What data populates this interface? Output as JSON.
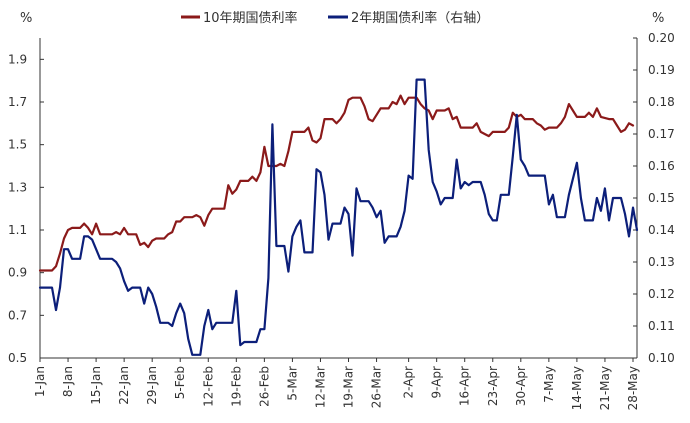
{
  "chart_data": {
    "type": "line",
    "left_unit": "%",
    "right_unit": "%",
    "left_axis": {
      "ylim": [
        0.5,
        2.0
      ],
      "ticks": [
        "0.5",
        "0.7",
        "0.9",
        "1.1",
        "1.3",
        "1.5",
        "1.7",
        "1.9"
      ]
    },
    "right_axis": {
      "ylim": [
        0.1,
        0.2
      ],
      "ticks": [
        "0.10",
        "0.11",
        "0.12",
        "0.13",
        "0.14",
        "0.15",
        "0.16",
        "0.17",
        "0.18",
        "0.19",
        "0.20"
      ]
    },
    "legend_placement": "top-center",
    "x_days": 149,
    "x_ticks": [
      {
        "day": 0,
        "label": "1-Jan"
      },
      {
        "day": 7,
        "label": "8-Jan"
      },
      {
        "day": 14,
        "label": "15-Jan"
      },
      {
        "day": 21,
        "label": "22-Jan"
      },
      {
        "day": 28,
        "label": "29-Jan"
      },
      {
        "day": 35,
        "label": "5-Feb"
      },
      {
        "day": 42,
        "label": "12-Feb"
      },
      {
        "day": 49,
        "label": "19-Feb"
      },
      {
        "day": 56,
        "label": "26-Feb"
      },
      {
        "day": 63,
        "label": "5-Mar"
      },
      {
        "day": 70,
        "label": "12-Mar"
      },
      {
        "day": 77,
        "label": "19-Mar"
      },
      {
        "day": 84,
        "label": "26-Mar"
      },
      {
        "day": 92,
        "label": "2-Apr"
      },
      {
        "day": 99,
        "label": "9-Apr"
      },
      {
        "day": 106,
        "label": "16-Apr"
      },
      {
        "day": 113,
        "label": "23-Apr"
      },
      {
        "day": 120,
        "label": "30-Apr"
      },
      {
        "day": 127,
        "label": "7-May"
      },
      {
        "day": 134,
        "label": "14-May"
      },
      {
        "day": 141,
        "label": "21-May"
      },
      {
        "day": 148,
        "label": "28-May"
      }
    ],
    "series": [
      {
        "name": "10年期国债利率",
        "axis": "left",
        "color": "#8b1a1a",
        "points": [
          [
            0,
            0.91
          ],
          [
            3,
            0.91
          ],
          [
            4,
            0.93
          ],
          [
            5,
            0.99
          ],
          [
            6,
            1.06
          ],
          [
            7,
            1.1
          ],
          [
            8,
            1.11
          ],
          [
            10,
            1.11
          ],
          [
            11,
            1.13
          ],
          [
            12,
            1.11
          ],
          [
            13,
            1.08
          ],
          [
            14,
            1.13
          ],
          [
            15,
            1.08
          ],
          [
            18,
            1.08
          ],
          [
            19,
            1.09
          ],
          [
            20,
            1.08
          ],
          [
            21,
            1.11
          ],
          [
            22,
            1.08
          ],
          [
            24,
            1.08
          ],
          [
            25,
            1.03
          ],
          [
            26,
            1.04
          ],
          [
            27,
            1.02
          ],
          [
            28,
            1.05
          ],
          [
            29,
            1.06
          ],
          [
            31,
            1.06
          ],
          [
            32,
            1.08
          ],
          [
            33,
            1.09
          ],
          [
            34,
            1.14
          ],
          [
            35,
            1.14
          ],
          [
            36,
            1.16
          ],
          [
            38,
            1.16
          ],
          [
            39,
            1.17
          ],
          [
            40,
            1.16
          ],
          [
            41,
            1.12
          ],
          [
            42,
            1.17
          ],
          [
            43,
            1.2
          ],
          [
            46,
            1.2
          ],
          [
            47,
            1.31
          ],
          [
            48,
            1.27
          ],
          [
            49,
            1.29
          ],
          [
            50,
            1.33
          ],
          [
            52,
            1.33
          ],
          [
            53,
            1.35
          ],
          [
            54,
            1.33
          ],
          [
            55,
            1.37
          ],
          [
            56,
            1.49
          ],
          [
            57,
            1.4
          ],
          [
            59,
            1.4
          ],
          [
            60,
            1.41
          ],
          [
            61,
            1.4
          ],
          [
            62,
            1.47
          ],
          [
            63,
            1.56
          ],
          [
            66,
            1.56
          ],
          [
            67,
            1.58
          ],
          [
            68,
            1.52
          ],
          [
            69,
            1.51
          ],
          [
            70,
            1.53
          ],
          [
            71,
            1.62
          ],
          [
            73,
            1.62
          ],
          [
            74,
            1.6
          ],
          [
            75,
            1.62
          ],
          [
            76,
            1.65
          ],
          [
            77,
            1.71
          ],
          [
            78,
            1.72
          ],
          [
            80,
            1.72
          ],
          [
            81,
            1.68
          ],
          [
            82,
            1.62
          ],
          [
            83,
            1.61
          ],
          [
            84,
            1.64
          ],
          [
            85,
            1.67
          ],
          [
            87,
            1.67
          ],
          [
            88,
            1.7
          ],
          [
            89,
            1.69
          ],
          [
            90,
            1.73
          ],
          [
            91,
            1.69
          ],
          [
            92,
            1.72
          ],
          [
            94,
            1.72
          ],
          [
            95,
            1.69
          ],
          [
            96,
            1.67
          ],
          [
            97,
            1.66
          ],
          [
            98,
            1.62
          ],
          [
            99,
            1.66
          ],
          [
            101,
            1.66
          ],
          [
            102,
            1.67
          ],
          [
            103,
            1.62
          ],
          [
            104,
            1.63
          ],
          [
            105,
            1.58
          ],
          [
            106,
            1.58
          ],
          [
            108,
            1.58
          ],
          [
            109,
            1.6
          ],
          [
            110,
            1.56
          ],
          [
            111,
            1.55
          ],
          [
            112,
            1.54
          ],
          [
            113,
            1.56
          ],
          [
            116,
            1.56
          ],
          [
            117,
            1.58
          ],
          [
            118,
            1.65
          ],
          [
            119,
            1.63
          ],
          [
            120,
            1.64
          ],
          [
            121,
            1.62
          ],
          [
            123,
            1.62
          ],
          [
            124,
            1.6
          ],
          [
            125,
            1.59
          ],
          [
            126,
            1.57
          ],
          [
            127,
            1.58
          ],
          [
            129,
            1.58
          ],
          [
            130,
            1.6
          ],
          [
            131,
            1.63
          ],
          [
            132,
            1.69
          ],
          [
            133,
            1.66
          ],
          [
            134,
            1.63
          ],
          [
            136,
            1.63
          ],
          [
            137,
            1.65
          ],
          [
            138,
            1.63
          ],
          [
            139,
            1.67
          ],
          [
            140,
            1.63
          ],
          [
            142,
            1.62
          ],
          [
            143,
            1.62
          ],
          [
            144,
            1.59
          ],
          [
            145,
            1.56
          ],
          [
            146,
            1.57
          ],
          [
            147,
            1.6
          ],
          [
            148,
            1.59
          ]
        ]
      },
      {
        "name": "2年期国债利率（右轴）",
        "axis": "right",
        "color": "#0c1f7a",
        "points": [
          [
            0,
            0.122
          ],
          [
            3,
            0.122
          ],
          [
            4,
            0.115
          ],
          [
            5,
            0.122
          ],
          [
            6,
            0.134
          ],
          [
            7,
            0.134
          ],
          [
            8,
            0.131
          ],
          [
            10,
            0.131
          ],
          [
            11,
            0.138
          ],
          [
            12,
            0.138
          ],
          [
            13,
            0.137
          ],
          [
            14,
            0.134
          ],
          [
            15,
            0.131
          ],
          [
            18,
            0.131
          ],
          [
            19,
            0.13
          ],
          [
            20,
            0.128
          ],
          [
            21,
            0.124
          ],
          [
            22,
            0.121
          ],
          [
            23,
            0.122
          ],
          [
            25,
            0.122
          ],
          [
            26,
            0.117
          ],
          [
            27,
            0.122
          ],
          [
            28,
            0.12
          ],
          [
            29,
            0.116
          ],
          [
            30,
            0.111
          ],
          [
            32,
            0.111
          ],
          [
            33,
            0.11
          ],
          [
            34,
            0.114
          ],
          [
            35,
            0.117
          ],
          [
            36,
            0.114
          ],
          [
            37,
            0.106
          ],
          [
            38,
            0.101
          ],
          [
            39,
            0.101
          ],
          [
            40,
            0.101
          ],
          [
            41,
            0.11
          ],
          [
            42,
            0.115
          ],
          [
            43,
            0.109
          ],
          [
            44,
            0.111
          ],
          [
            46,
            0.111
          ],
          [
            47,
            0.111
          ],
          [
            48,
            0.111
          ],
          [
            49,
            0.121
          ],
          [
            50,
            0.104
          ],
          [
            51,
            0.105
          ],
          [
            52,
            0.105
          ],
          [
            54,
            0.105
          ],
          [
            55,
            0.109
          ],
          [
            56,
            0.109
          ],
          [
            57,
            0.125
          ],
          [
            58,
            0.173
          ],
          [
            59,
            0.135
          ],
          [
            61,
            0.135
          ],
          [
            62,
            0.127
          ],
          [
            63,
            0.138
          ],
          [
            64,
            0.141
          ],
          [
            65,
            0.143
          ],
          [
            66,
            0.133
          ],
          [
            67,
            0.133
          ],
          [
            68,
            0.133
          ],
          [
            69,
            0.159
          ],
          [
            70,
            0.158
          ],
          [
            71,
            0.151
          ],
          [
            72,
            0.137
          ],
          [
            73,
            0.142
          ],
          [
            75,
            0.142
          ],
          [
            76,
            0.147
          ],
          [
            77,
            0.145
          ],
          [
            78,
            0.132
          ],
          [
            79,
            0.153
          ],
          [
            80,
            0.149
          ],
          [
            82,
            0.149
          ],
          [
            83,
            0.147
          ],
          [
            84,
            0.144
          ],
          [
            85,
            0.146
          ],
          [
            86,
            0.136
          ],
          [
            87,
            0.138
          ],
          [
            89,
            0.138
          ],
          [
            90,
            0.141
          ],
          [
            91,
            0.146
          ],
          [
            92,
            0.157
          ],
          [
            93,
            0.156
          ],
          [
            94,
            0.187
          ],
          [
            96,
            0.187
          ],
          [
            97,
            0.165
          ],
          [
            98,
            0.155
          ],
          [
            99,
            0.152
          ],
          [
            100,
            0.148
          ],
          [
            101,
            0.15
          ],
          [
            103,
            0.15
          ],
          [
            104,
            0.162
          ],
          [
            105,
            0.153
          ],
          [
            106,
            0.155
          ],
          [
            107,
            0.154
          ],
          [
            108,
            0.155
          ],
          [
            110,
            0.155
          ],
          [
            111,
            0.151
          ],
          [
            112,
            0.145
          ],
          [
            113,
            0.143
          ],
          [
            114,
            0.143
          ],
          [
            115,
            0.151
          ],
          [
            117,
            0.151
          ],
          [
            118,
            0.163
          ],
          [
            119,
            0.176
          ],
          [
            120,
            0.162
          ],
          [
            121,
            0.16
          ],
          [
            122,
            0.157
          ],
          [
            126,
            0.157
          ],
          [
            127,
            0.148
          ],
          [
            128,
            0.151
          ],
          [
            129,
            0.144
          ],
          [
            131,
            0.144
          ],
          [
            132,
            0.151
          ],
          [
            133,
            0.156
          ],
          [
            134,
            0.161
          ],
          [
            135,
            0.15
          ],
          [
            136,
            0.143
          ],
          [
            138,
            0.143
          ],
          [
            139,
            0.15
          ],
          [
            140,
            0.146
          ],
          [
            141,
            0.153
          ],
          [
            142,
            0.143
          ],
          [
            143,
            0.15
          ],
          [
            145,
            0.15
          ],
          [
            146,
            0.145
          ],
          [
            147,
            0.138
          ],
          [
            148,
            0.147
          ],
          [
            149,
            0.14
          ]
        ]
      }
    ]
  }
}
